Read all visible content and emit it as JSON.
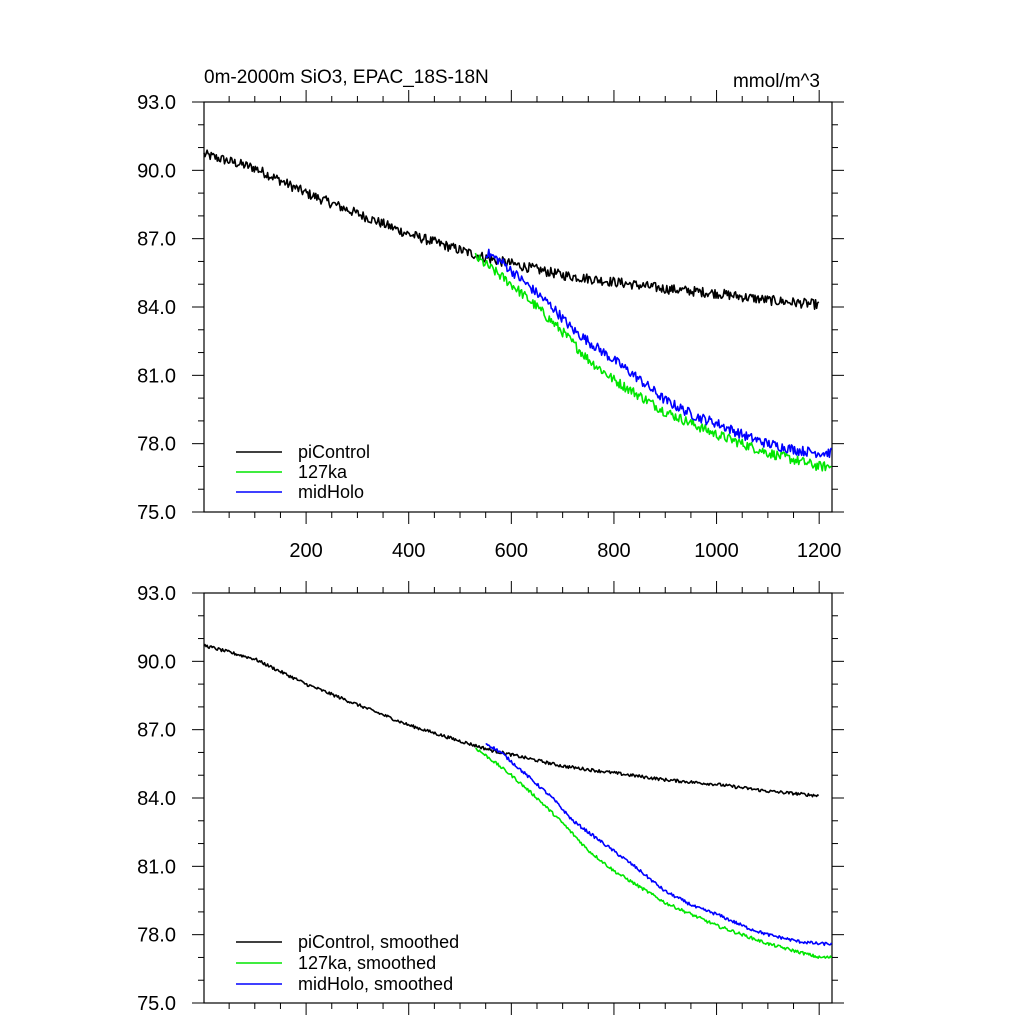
{
  "chart_data": [
    {
      "type": "line",
      "title": "0m-2000m SiO3, EPAC_18S-18N",
      "units": "mmol/m^3",
      "xlim": [
        1,
        1225
      ],
      "ylim": [
        75.0,
        93.0
      ],
      "xticks": [
        200,
        400,
        600,
        800,
        1000,
        1200
      ],
      "yticks": [
        75.0,
        78.0,
        81.0,
        84.0,
        87.0,
        90.0,
        93.0
      ],
      "ytick_labels": [
        "75.0",
        "78.0",
        "81.0",
        "84.0",
        "87.0",
        "90.0",
        "93.0"
      ],
      "xtick_labels": [
        "200",
        "400",
        "600",
        "800",
        "1000",
        "1200"
      ],
      "show_x_tick_labels": true,
      "legend_position": "bottom-left",
      "noise": 0.22,
      "series": [
        {
          "name": "piControl",
          "color": "#000000",
          "x": [
            1,
            100,
            200,
            300,
            400,
            500,
            560,
            600,
            700,
            800,
            900,
            1000,
            1100,
            1200
          ],
          "y": [
            90.7,
            90.1,
            89.0,
            88.1,
            87.2,
            86.5,
            86.1,
            85.9,
            85.4,
            85.1,
            84.8,
            84.6,
            84.3,
            84.1
          ]
        },
        {
          "name": "127ka",
          "color": "#00e600",
          "x": [
            530,
            560,
            600,
            650,
            700,
            750,
            800,
            850,
            900,
            950,
            1000,
            1050,
            1100,
            1150,
            1200,
            1225
          ],
          "y": [
            86.2,
            85.7,
            85.0,
            84.0,
            82.9,
            81.7,
            80.8,
            80.1,
            79.4,
            78.9,
            78.4,
            78.0,
            77.6,
            77.3,
            77.0,
            77.0
          ]
        },
        {
          "name": "midHolo",
          "color": "#0000ff",
          "x": [
            550,
            580,
            620,
            680,
            720,
            780,
            840,
            900,
            960,
            1000,
            1060,
            1100,
            1160,
            1200,
            1225
          ],
          "y": [
            86.4,
            86.0,
            85.2,
            84.0,
            83.0,
            82.0,
            81.0,
            79.9,
            79.2,
            78.9,
            78.3,
            78.0,
            77.7,
            77.6,
            77.6
          ]
        }
      ]
    },
    {
      "type": "line",
      "title": "",
      "units": "",
      "xlim": [
        1,
        1225
      ],
      "ylim": [
        75.0,
        93.0
      ],
      "xticks": [
        200,
        400,
        600,
        800,
        1000,
        1200
      ],
      "yticks": [
        75.0,
        78.0,
        81.0,
        84.0,
        87.0,
        90.0,
        93.0
      ],
      "ytick_labels": [
        "75.0",
        "78.0",
        "81.0",
        "84.0",
        "87.0",
        "90.0",
        "93.0"
      ],
      "xtick_labels": [],
      "show_x_tick_labels": false,
      "legend_position": "bottom-left",
      "noise": 0.07,
      "series": [
        {
          "name": "piControl, smoothed",
          "color": "#000000",
          "x": [
            1,
            100,
            200,
            300,
            400,
            500,
            560,
            600,
            700,
            800,
            900,
            1000,
            1100,
            1200
          ],
          "y": [
            90.7,
            90.1,
            89.0,
            88.1,
            87.2,
            86.5,
            86.1,
            85.9,
            85.4,
            85.1,
            84.8,
            84.6,
            84.3,
            84.1
          ]
        },
        {
          "name": "127ka, smoothed",
          "color": "#00e600",
          "x": [
            530,
            560,
            600,
            650,
            700,
            750,
            800,
            850,
            900,
            950,
            1000,
            1050,
            1100,
            1150,
            1200,
            1225
          ],
          "y": [
            86.2,
            85.7,
            85.0,
            84.0,
            82.9,
            81.7,
            80.8,
            80.1,
            79.4,
            78.9,
            78.4,
            78.0,
            77.6,
            77.3,
            77.0,
            77.0
          ]
        },
        {
          "name": "midHolo, smoothed",
          "color": "#0000ff",
          "x": [
            550,
            580,
            620,
            680,
            720,
            780,
            840,
            900,
            960,
            1000,
            1060,
            1100,
            1160,
            1200,
            1225
          ],
          "y": [
            86.4,
            86.0,
            85.2,
            84.0,
            83.0,
            82.0,
            81.0,
            79.9,
            79.2,
            78.9,
            78.3,
            78.0,
            77.7,
            77.6,
            77.6
          ]
        }
      ]
    }
  ]
}
